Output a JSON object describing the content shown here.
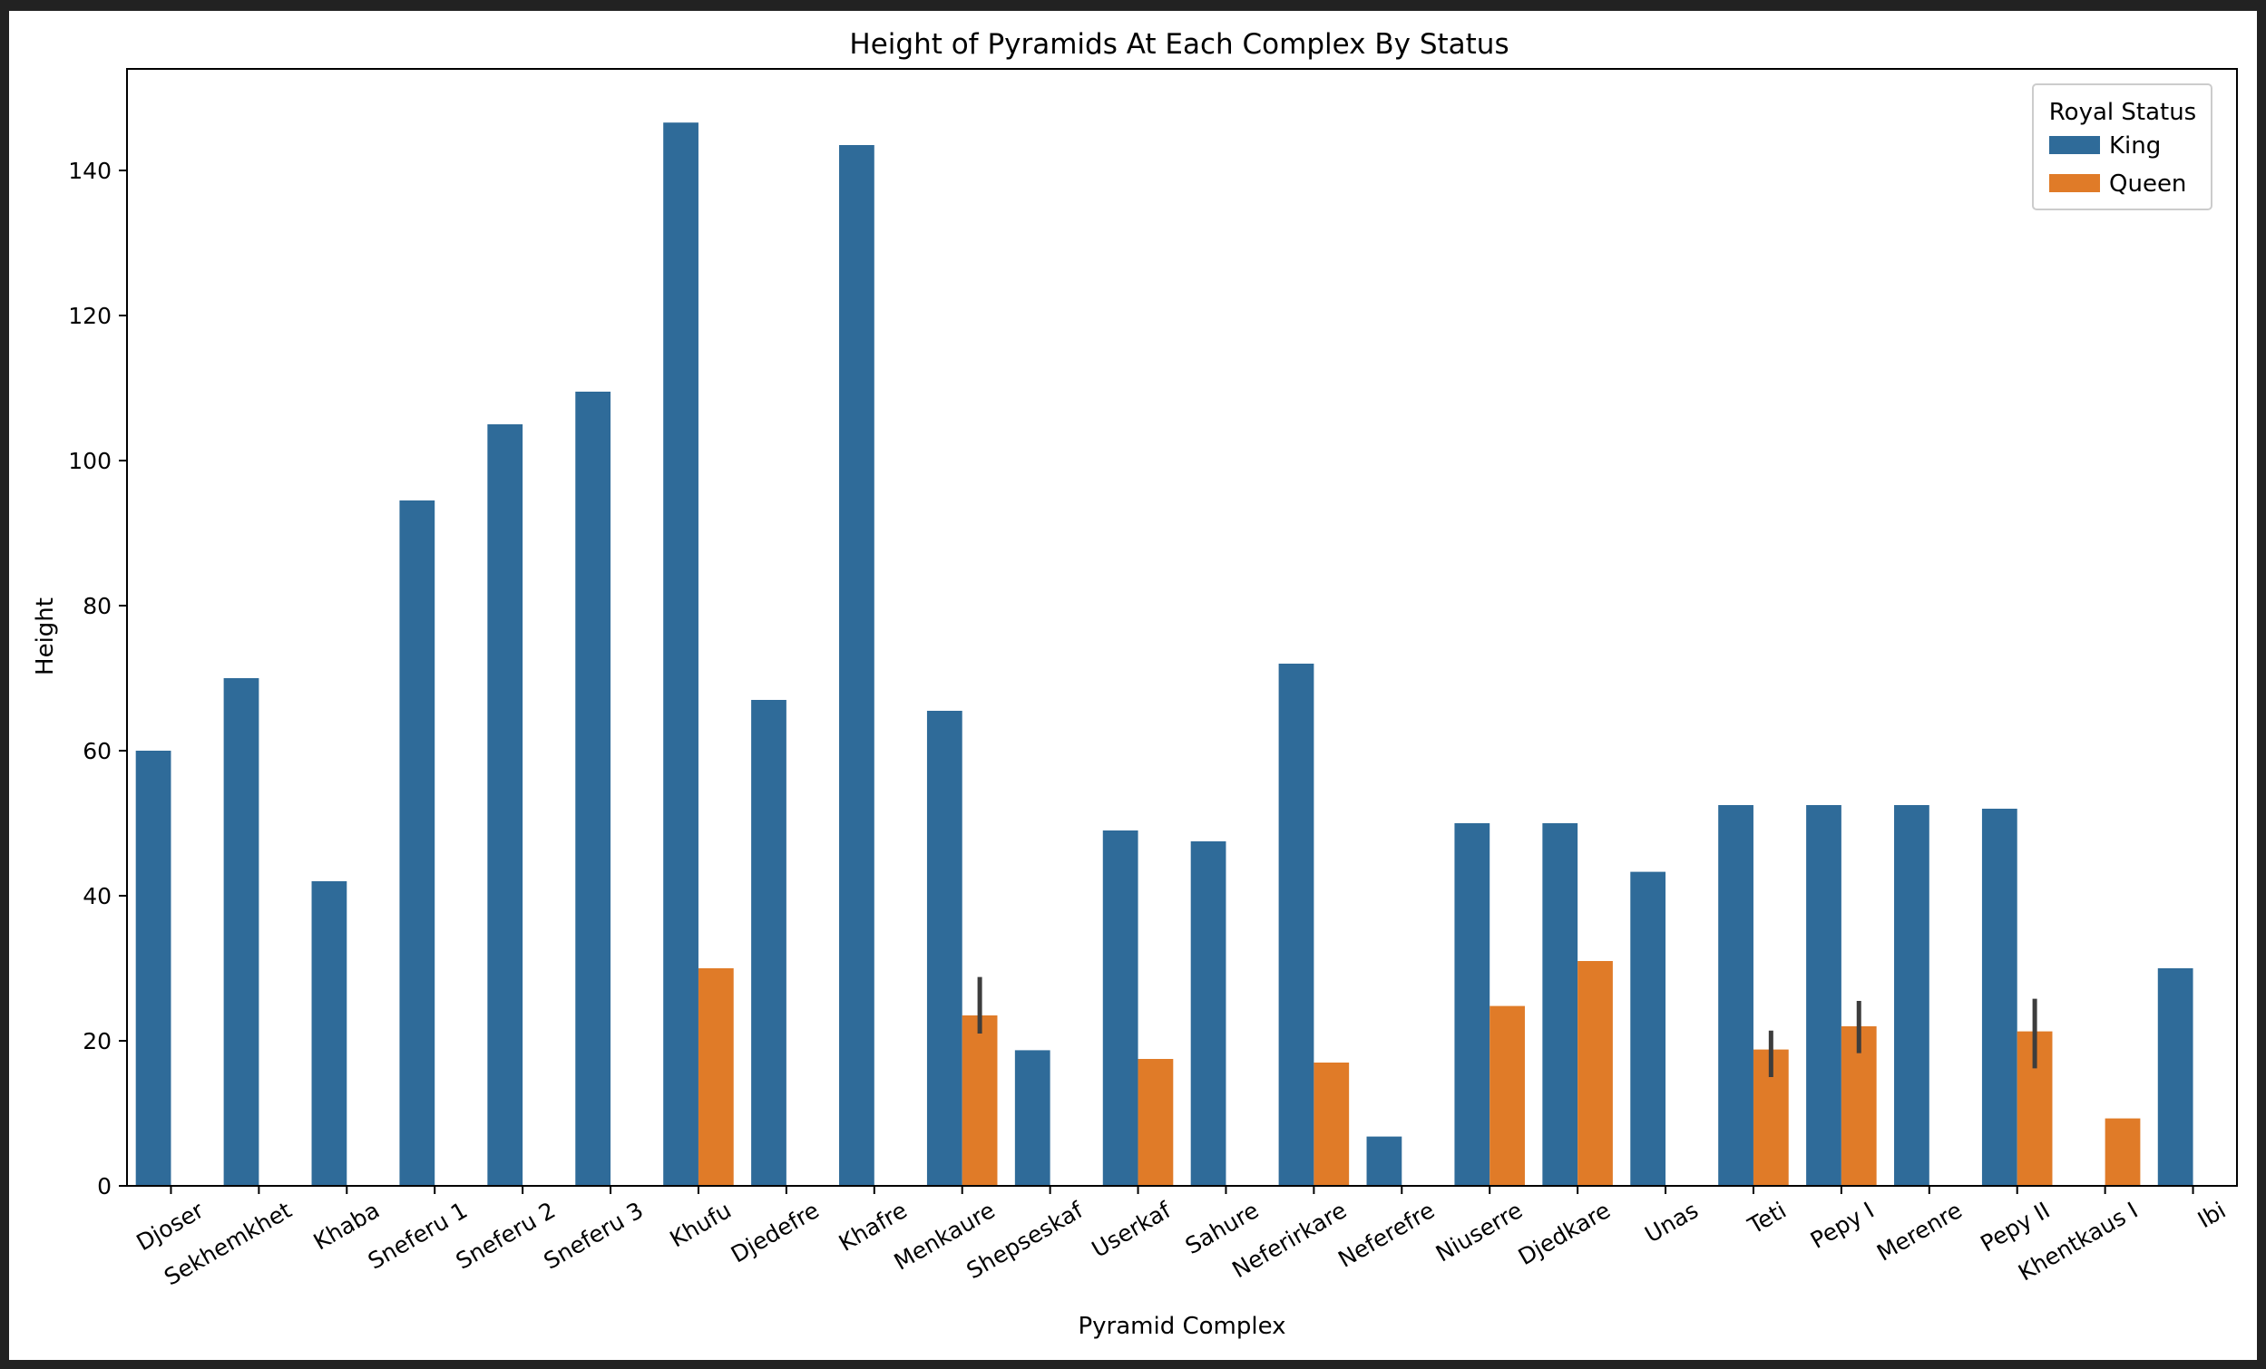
{
  "chart_data": {
    "type": "bar",
    "title": "Height of Pyramids At Each Complex By Status",
    "xlabel": "Pyramid Complex",
    "ylabel": "Height",
    "ylim": [
      0,
      154
    ],
    "yticks": [
      0,
      20,
      40,
      60,
      80,
      100,
      120,
      140
    ],
    "grid": false,
    "legend": {
      "title": "Royal Status",
      "placement": "top-right"
    },
    "categories": [
      "Djoser",
      "Sekhemkhet",
      "Khaba",
      "Sneferu 1",
      "Sneferu 2",
      "Sneferu 3",
      "Khufu",
      "Djedefre",
      "Khafre",
      "Menkaure",
      "Shepseskaf",
      "Userkaf",
      "Sahure",
      "Neferirkare",
      "Neferefre",
      "Niuserre",
      "Djedkare",
      "Unas",
      "Teti",
      "Pepy I",
      "Merenre",
      "Pepy II",
      "Khentkaus I",
      "Ibi"
    ],
    "series": [
      {
        "name": "King",
        "color": "#2f6b99",
        "values": [
          60,
          70,
          42,
          94.5,
          105,
          109.5,
          146.6,
          67,
          143.5,
          65.5,
          18.7,
          49,
          47.5,
          72,
          6.8,
          50,
          50,
          43.3,
          52.5,
          52.5,
          52.5,
          52,
          null,
          30
        ]
      },
      {
        "name": "Queen",
        "color": "#e07b28",
        "values": [
          null,
          null,
          null,
          null,
          null,
          null,
          30,
          null,
          null,
          23.5,
          null,
          17.5,
          null,
          17,
          null,
          24.8,
          31,
          null,
          18.8,
          22,
          null,
          21.3,
          9.3,
          null
        ],
        "error_low": [
          null,
          null,
          null,
          null,
          null,
          null,
          null,
          null,
          null,
          21,
          null,
          null,
          null,
          null,
          null,
          null,
          null,
          null,
          15,
          18.3,
          null,
          16.2,
          null,
          null
        ],
        "error_high": [
          null,
          null,
          null,
          null,
          null,
          null,
          null,
          null,
          null,
          28.8,
          null,
          null,
          null,
          null,
          null,
          null,
          null,
          null,
          21.4,
          25.5,
          null,
          25.8,
          null,
          null
        ]
      }
    ]
  }
}
